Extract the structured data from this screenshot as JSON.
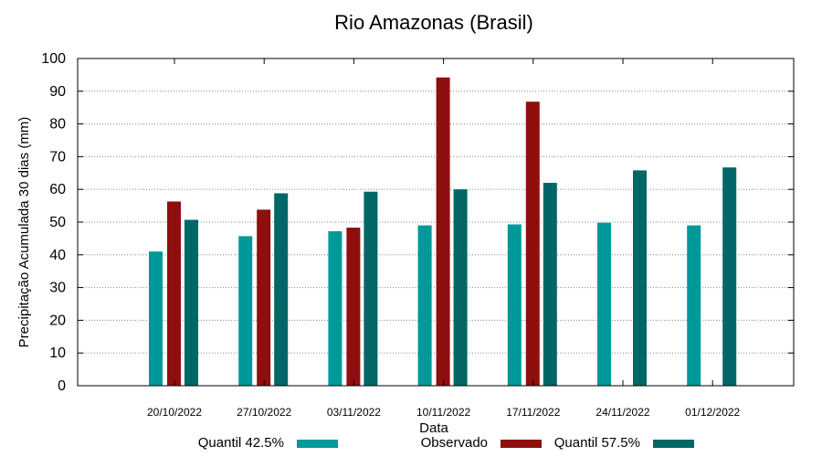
{
  "chart_data": {
    "type": "bar",
    "title": "Rio Amazonas (Brasil)",
    "xlabel": "Data",
    "ylabel": "Precipitação Acumulada 30 dias (mm)",
    "ylim": [
      0,
      100
    ],
    "yticks": [
      0,
      10,
      20,
      30,
      40,
      50,
      60,
      70,
      80,
      90,
      100
    ],
    "grid": true,
    "legend_position": "bottom",
    "categories": [
      "20/10/2022",
      "27/10/2022",
      "03/11/2022",
      "10/11/2022",
      "17/11/2022",
      "24/11/2022",
      "01/12/2022"
    ],
    "series": [
      {
        "name": "Quantil 42.5%",
        "color": "#009999",
        "values": [
          41,
          45.7,
          47.2,
          49,
          49.3,
          49.8,
          49
        ]
      },
      {
        "name": "Observado",
        "color": "#8f0f0f",
        "values": [
          56.3,
          53.8,
          48.3,
          94.2,
          86.8,
          null,
          null
        ]
      },
      {
        "name": "Quantil 57.5%",
        "color": "#006666",
        "values": [
          50.7,
          58.8,
          59.3,
          60,
          62,
          65.8,
          66.7
        ]
      }
    ]
  }
}
